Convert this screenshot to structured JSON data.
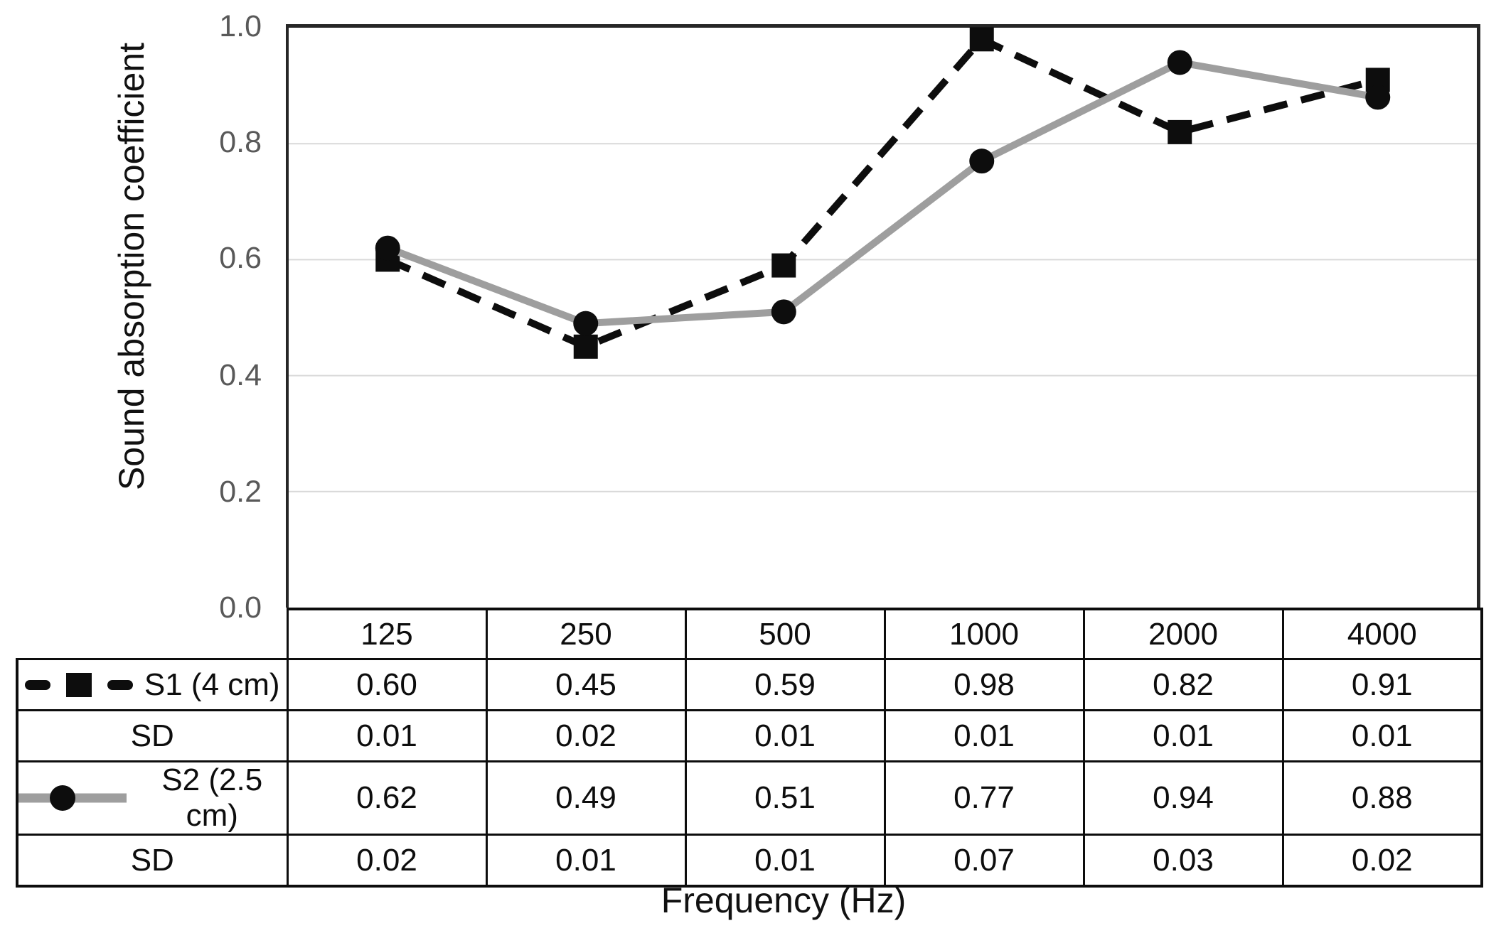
{
  "figure": {
    "y_axis_title": "Sound absorption coefficient",
    "x_axis_title": "Frequency (Hz)"
  },
  "chart_data": {
    "type": "line",
    "categories": [
      125,
      250,
      500,
      1000,
      2000,
      4000
    ],
    "title": "",
    "xlabel": "Frequency (Hz)",
    "ylabel": "Sound absorption coefficient",
    "ylim": [
      0.0,
      1.0
    ],
    "y_ticks": [
      "1.0",
      "0.8",
      "0.6",
      "0.4",
      "0.2",
      "0.0"
    ],
    "gridline_values": [
      0.2,
      0.4,
      0.6,
      0.8
    ],
    "grid": "horizontal-light",
    "legend_position": "table-left-column",
    "series": [
      {
        "name": "S1 (4 cm)",
        "values": [
          0.6,
          0.45,
          0.59,
          0.98,
          0.82,
          0.91
        ],
        "sd": [
          0.01,
          0.02,
          0.01,
          0.01,
          0.01,
          0.01
        ],
        "line_style": "dashed",
        "marker": "square",
        "color": "#0d0d0d",
        "marker_color": "#0d0d0d"
      },
      {
        "name": "S2 (2.5 cm)",
        "values": [
          0.62,
          0.49,
          0.51,
          0.77,
          0.94,
          0.88
        ],
        "sd": [
          0.02,
          0.01,
          0.01,
          0.07,
          0.03,
          0.02
        ],
        "line_style": "solid",
        "marker": "circle",
        "color": "#9e9e9e",
        "marker_color": "#0d0d0d"
      }
    ],
    "table": {
      "header": [
        "125",
        "250",
        "500",
        "1000",
        "2000",
        "4000"
      ],
      "rows": [
        {
          "label": "S1 (4 cm)",
          "cells": [
            "0.60",
            "0.45",
            "0.59",
            "0.98",
            "0.82",
            "0.91"
          ]
        },
        {
          "label": "SD",
          "cells": [
            "0.01",
            "0.02",
            "0.01",
            "0.01",
            "0.01",
            "0.01"
          ]
        },
        {
          "label": "S2 (2.5 cm)",
          "cells": [
            "0.62",
            "0.49",
            "0.51",
            "0.77",
            "0.94",
            "0.88"
          ]
        },
        {
          "label": "SD",
          "cells": [
            "0.02",
            "0.01",
            "0.01",
            "0.07",
            "0.03",
            "0.02"
          ]
        }
      ]
    },
    "colors": {
      "grid": "#d9d9d9",
      "axis": "#262626",
      "tick_label": "#595959",
      "s1_line": "#0d0d0d",
      "s2_line": "#9e9e9e",
      "marker": "#0d0d0d"
    }
  }
}
